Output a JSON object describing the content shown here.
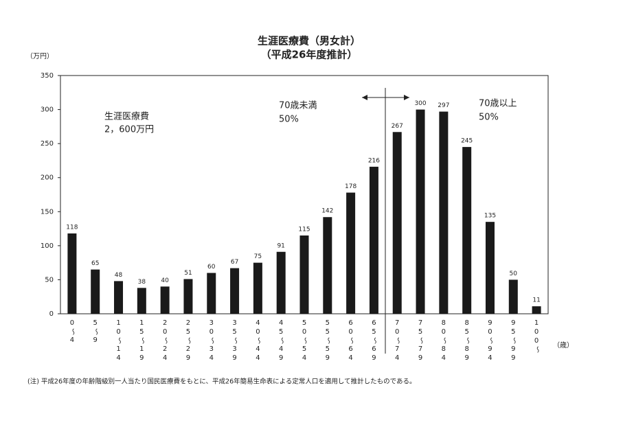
{
  "chart_data": {
    "type": "bar",
    "title": "生涯医療費（男女計）",
    "subtitle": "（平成26年度推計）",
    "y_axis_label": "（万円）",
    "x_axis_label": "（歳）",
    "categories": [
      "0〜4",
      "5〜9",
      "10〜14",
      "15〜19",
      "20〜24",
      "25〜29",
      "30〜34",
      "35〜39",
      "40〜44",
      "45〜49",
      "50〜54",
      "55〜59",
      "60〜64",
      "65〜69",
      "70〜74",
      "75〜79",
      "80〜84",
      "85〜89",
      "90〜94",
      "95〜99",
      "100〜"
    ],
    "values": [
      118,
      65,
      48,
      38,
      40,
      51,
      60,
      67,
      75,
      91,
      115,
      142,
      178,
      216,
      267,
      300,
      297,
      245,
      135,
      50,
      11
    ],
    "color": "#1a1a1a",
    "ylim": [
      0,
      350
    ],
    "yticks": [
      0,
      50,
      100,
      150,
      200,
      250,
      300,
      350
    ],
    "grid": false,
    "annotations": [
      "生涯医療費",
      "2，600万円",
      "70歳未満",
      "50%",
      "70歳以上",
      "50%"
    ],
    "note": "(注) 平成26年度の年齢階級別一人当たり国民医療費をもとに、平成26年簡易生命表による定常人口を適用して推計したものである。"
  }
}
